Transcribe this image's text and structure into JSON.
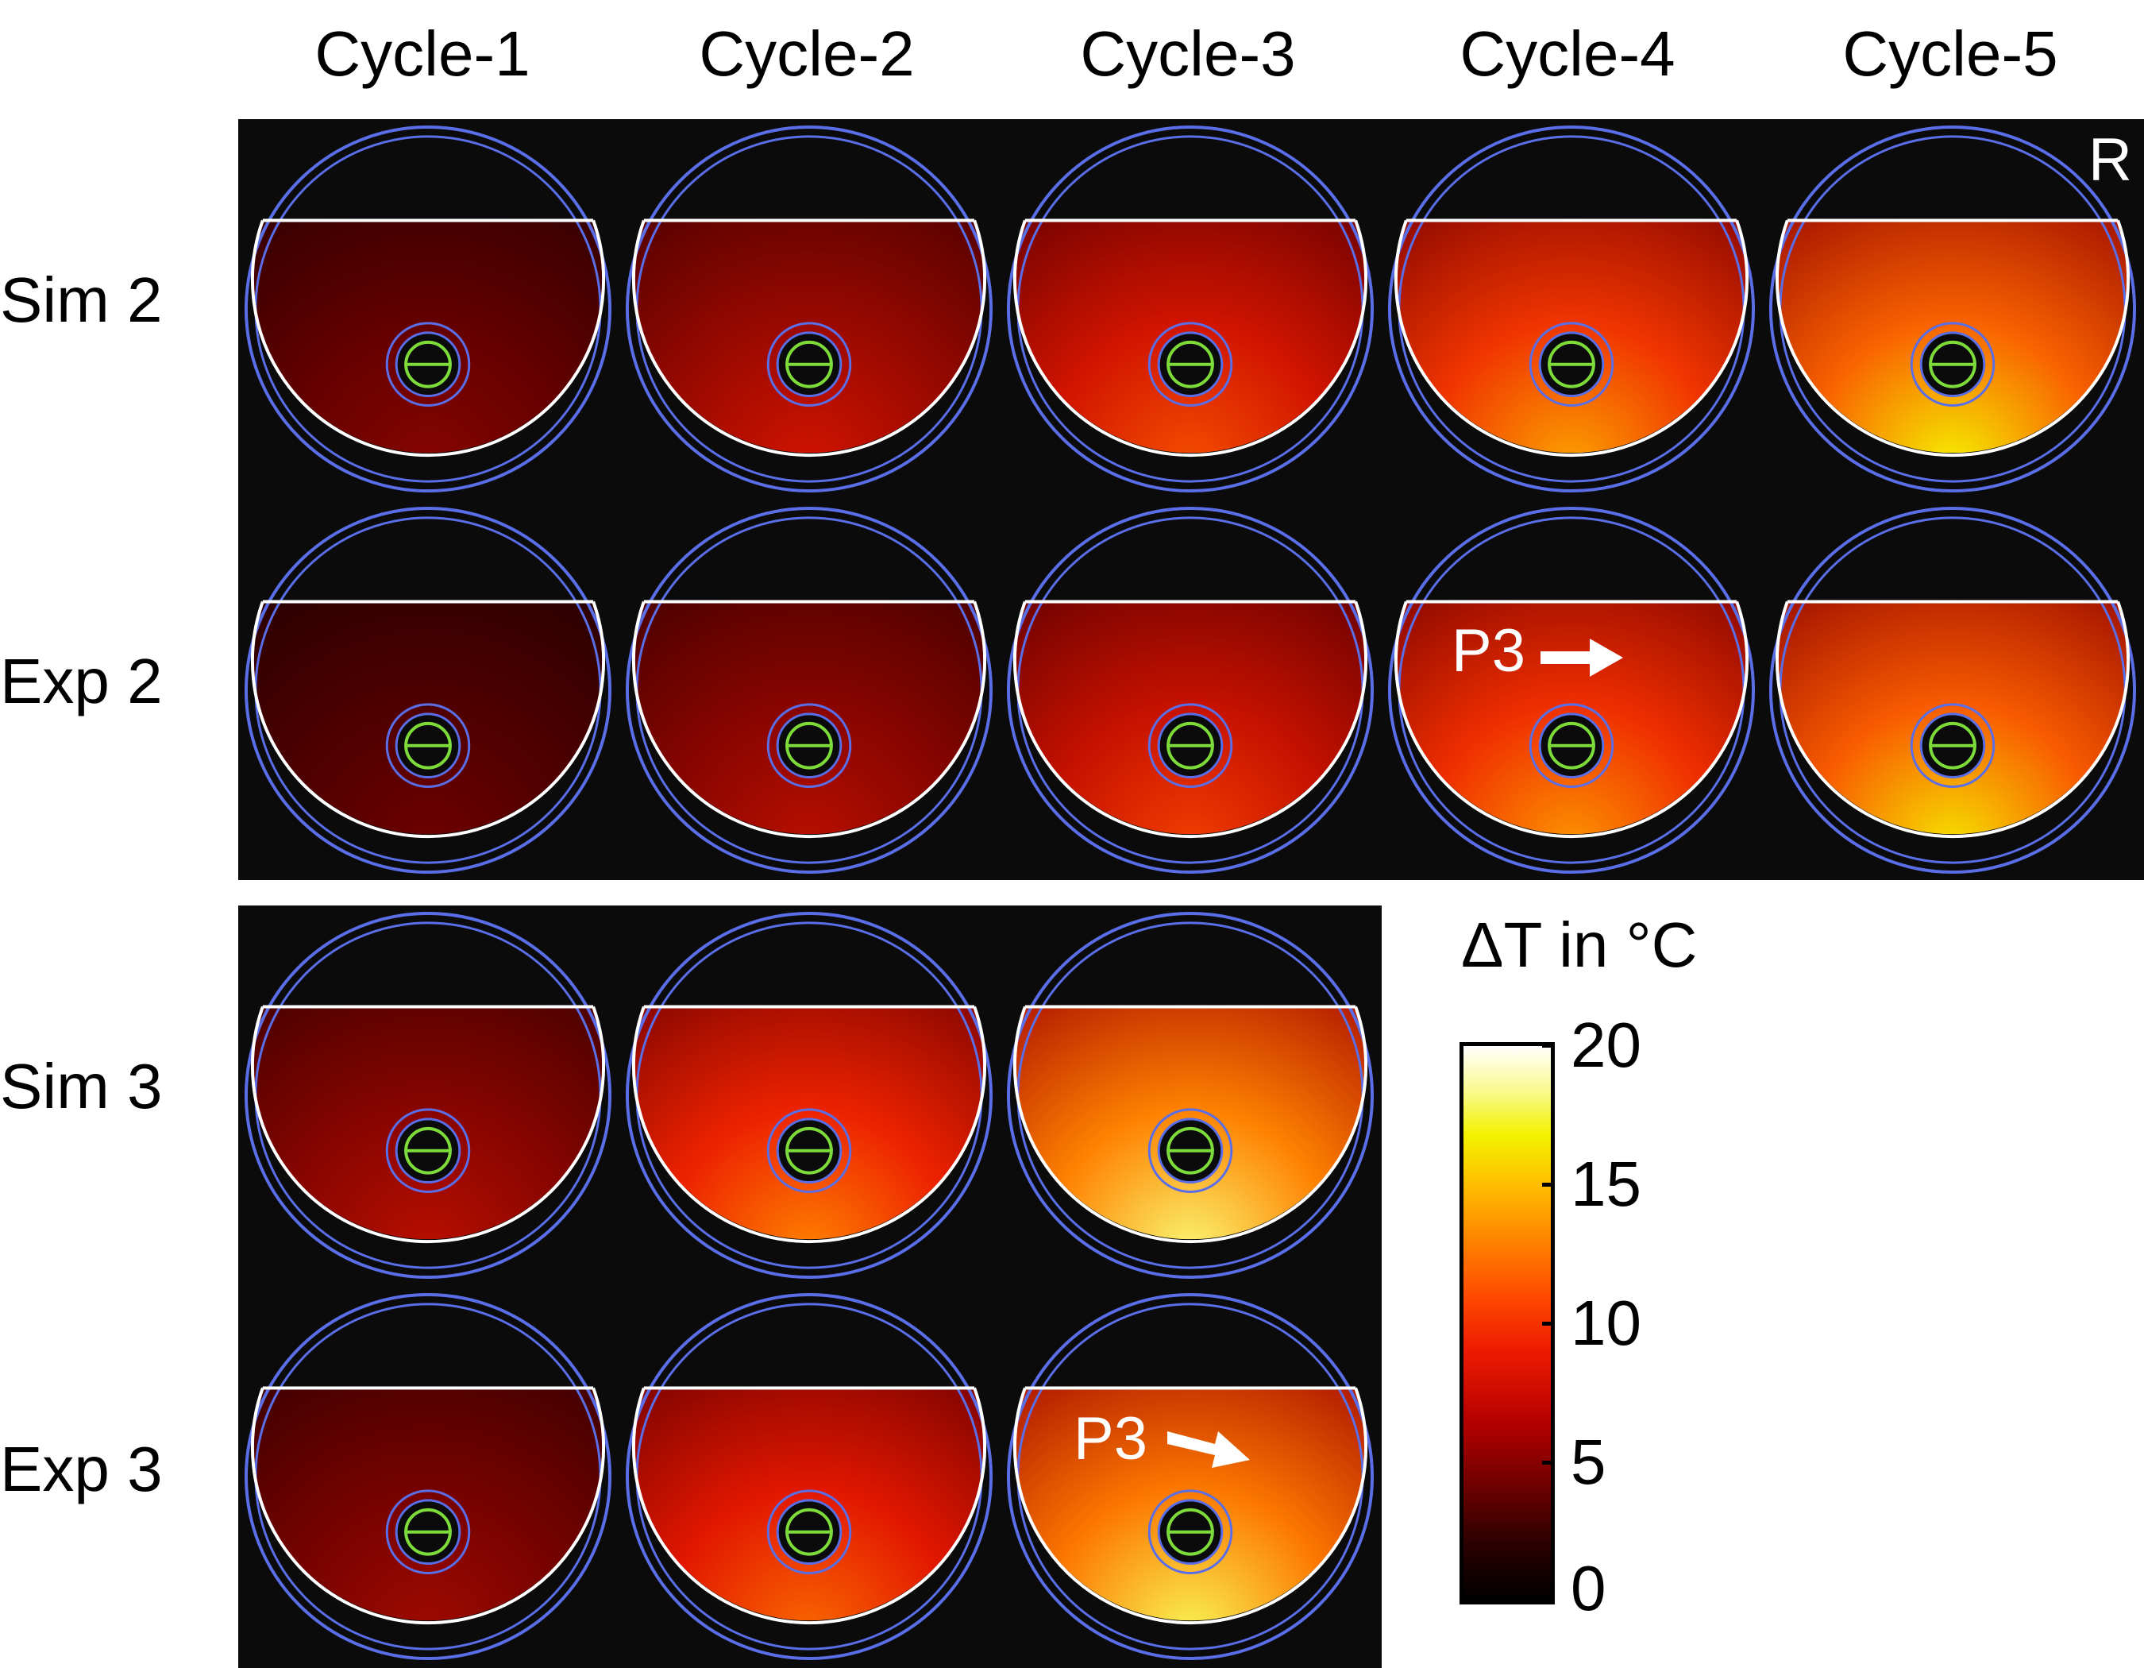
{
  "columns": [
    "Cycle-1",
    "Cycle-2",
    "Cycle-3",
    "Cycle-4",
    "Cycle-5"
  ],
  "rows": [
    "Sim 2",
    "Exp 2",
    "Sim 3",
    "Exp 3"
  ],
  "corner_label": "R",
  "annotation": "P3",
  "colorbar": {
    "title": "ΔT in °C",
    "ticks": [
      "20",
      "15",
      "10",
      "5",
      "0"
    ]
  },
  "colors": {
    "ring": "#5a6ee8",
    "outline": "#ffffff",
    "probe": "#7ddc3a",
    "background": "#0b0b0b",
    "arrow": "#ffffff"
  },
  "tiles": [
    {
      "row": "Sim 2",
      "col": "Cycle-1",
      "level": 0.25
    },
    {
      "row": "Sim 2",
      "col": "Cycle-2",
      "level": 0.4
    },
    {
      "row": "Sim 2",
      "col": "Cycle-3",
      "level": 0.55
    },
    {
      "row": "Sim 2",
      "col": "Cycle-4",
      "level": 0.7
    },
    {
      "row": "Sim 2",
      "col": "Cycle-5",
      "level": 0.82
    },
    {
      "row": "Exp 2",
      "col": "Cycle-1",
      "level": 0.2
    },
    {
      "row": "Exp 2",
      "col": "Cycle-2",
      "level": 0.35
    },
    {
      "row": "Exp 2",
      "col": "Cycle-3",
      "level": 0.52
    },
    {
      "row": "Exp 2",
      "col": "Cycle-4",
      "level": 0.68
    },
    {
      "row": "Exp 2",
      "col": "Cycle-5",
      "level": 0.8
    },
    {
      "row": "Sim 3",
      "col": "Cycle-1",
      "level": 0.35
    },
    {
      "row": "Sim 3",
      "col": "Cycle-2",
      "level": 0.65
    },
    {
      "row": "Sim 3",
      "col": "Cycle-3",
      "level": 0.9
    },
    {
      "row": "Exp 3",
      "col": "Cycle-1",
      "level": 0.3
    },
    {
      "row": "Exp 3",
      "col": "Cycle-2",
      "level": 0.6
    },
    {
      "row": "Exp 3",
      "col": "Cycle-3",
      "level": 0.88
    }
  ]
}
